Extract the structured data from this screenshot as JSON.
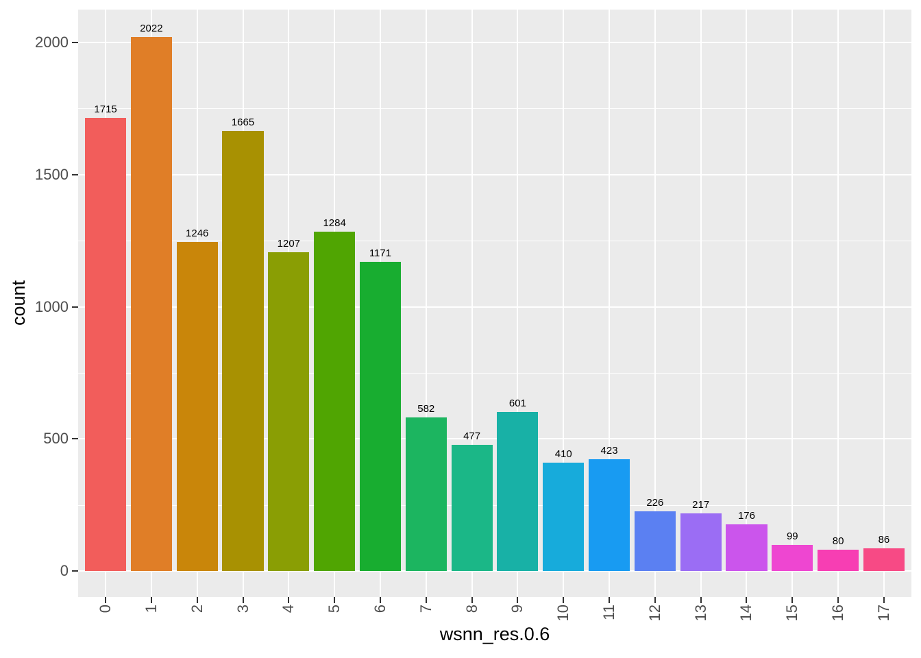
{
  "figure": {
    "background": "#FFFFFF"
  },
  "panel": {
    "background": "#EBEBEB",
    "grid_color": "#FFFFFF"
  },
  "axes": {
    "tick_color": "#333333",
    "tick_label_color": "#4D4D4D",
    "title_color": "#000000"
  },
  "chart_data": {
    "type": "bar",
    "title": "",
    "xlabel": "wsnn_res.0.6",
    "ylabel": "count",
    "categories": [
      "0",
      "1",
      "2",
      "3",
      "4",
      "5",
      "6",
      "7",
      "8",
      "9",
      "10",
      "11",
      "12",
      "13",
      "14",
      "15",
      "16",
      "17"
    ],
    "values": [
      1715,
      2022,
      1246,
      1665,
      1207,
      1284,
      1171,
      582,
      477,
      601,
      410,
      423,
      226,
      217,
      176,
      99,
      80,
      86
    ],
    "bar_labels": [
      "1715",
      "2022",
      "1246",
      "1665",
      "1207",
      "1284",
      "1171",
      "582",
      "477",
      "601",
      "410",
      "423",
      "226",
      "217",
      "176",
      "99",
      "80",
      "86"
    ],
    "bar_colors": [
      "#F25D5B",
      "#E07E27",
      "#C9860A",
      "#A89102",
      "#8A9E04",
      "#50A502",
      "#18AD30",
      "#1CB560",
      "#1BB787",
      "#18B1A6",
      "#17ABDB",
      "#189BF2",
      "#5B80F2",
      "#9B6DF4",
      "#CB55EC",
      "#EE46D1",
      "#F73EB3",
      "#F74A85"
    ],
    "y_ticks": [
      0,
      500,
      1000,
      1500,
      2000
    ],
    "y_tick_labels": [
      "0",
      "500",
      "1000",
      "1500",
      "2000"
    ],
    "y_minor_ticks": [
      250,
      750,
      1250,
      1750
    ],
    "ylim": [
      -99,
      2124
    ],
    "grid": true,
    "legend": false
  }
}
